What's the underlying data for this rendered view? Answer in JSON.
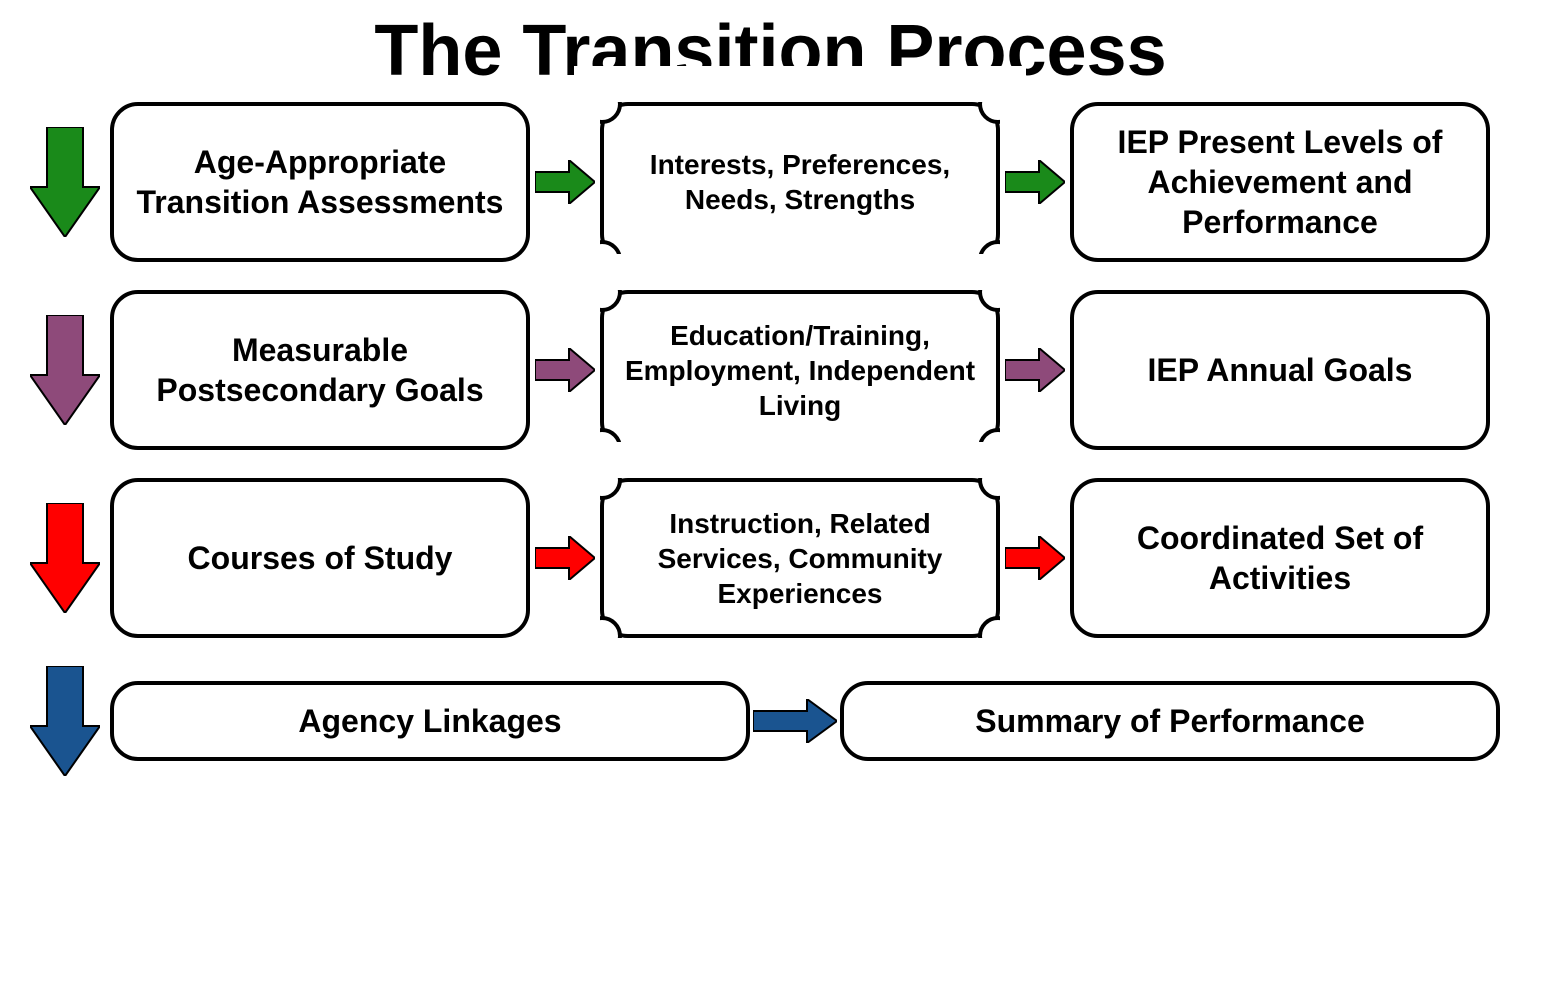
{
  "title": "The Transition Process",
  "title_fontsize": 72,
  "title_color": "#000000",
  "background_color": "#ffffff",
  "box_border_color": "#000000",
  "box_border_width": 4,
  "box_border_radius": 28,
  "box_text_color": "#000000",
  "box_fontsize_main": 32,
  "box_fontsize_mid": 28,
  "box_fontsize_short": 30,
  "rows": [
    {
      "arrow_color": "#1a8a1a",
      "left": "Age-Appropriate Transition Assessments",
      "mid": "Interests, Preferences, Needs, Strengths",
      "right": "IEP Present Levels of Achievement and Performance"
    },
    {
      "arrow_color": "#8e4a7a",
      "left": "Measurable Postsecondary Goals",
      "mid": "Education/Training, Employment, Independent Living",
      "right": "IEP Annual Goals"
    },
    {
      "arrow_color": "#ff0000",
      "left": "Courses of Study",
      "mid": "Instruction, Related Services, Community Experiences",
      "right": "Coordinated Set of Activities"
    }
  ],
  "row4": {
    "arrow_color": "#1a5490",
    "left": "Agency Linkages",
    "right": "Summary of Performance"
  },
  "layout": {
    "row_height_main": 160,
    "row_height_short": 80,
    "box_left_width": 420,
    "box_mid_width": 400,
    "box_right_width": 420,
    "box_wide_width": 650,
    "down_arrow_width": 70,
    "down_arrow_height": 110,
    "h_arrow_width": 60,
    "h_arrow_height": 44
  }
}
